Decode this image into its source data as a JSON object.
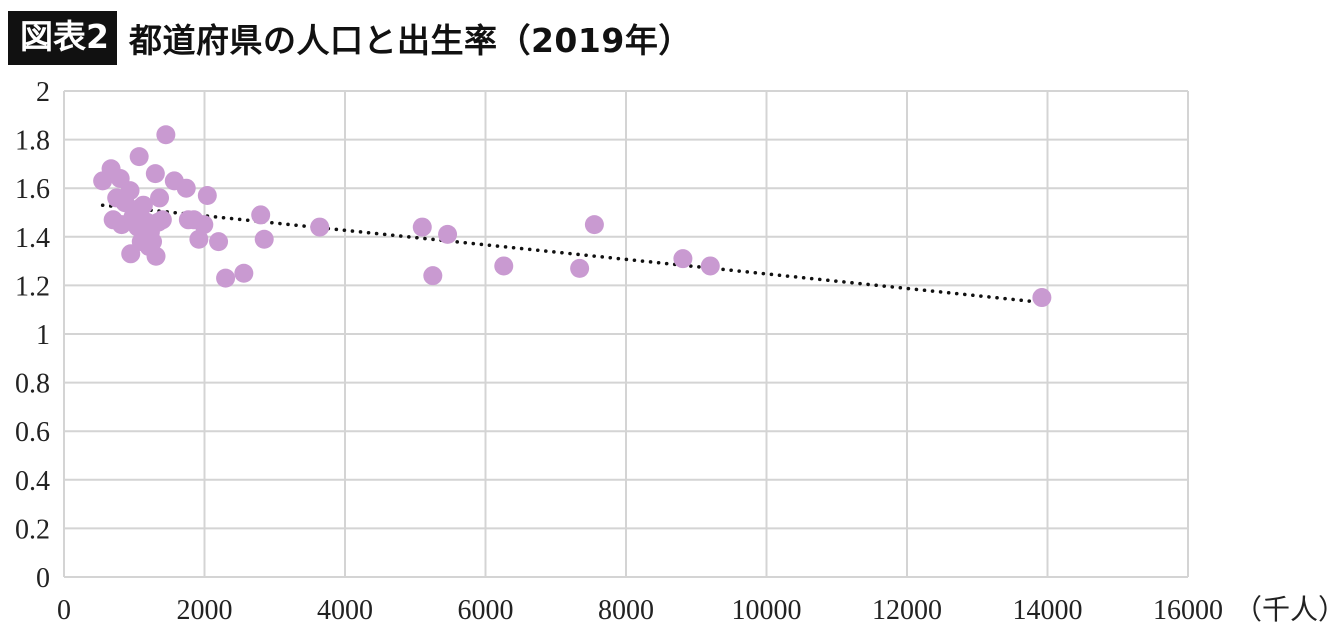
{
  "header": {
    "badge": "図表2",
    "title": "都道府県の人口と出生率（2019年）"
  },
  "colors": {
    "point": "#c99ad1",
    "grid": "#d4d4d4",
    "trend": "#111111",
    "badge_bg": "#111111"
  },
  "chart_data": {
    "type": "scatter",
    "title": "都道府県の人口と出生率（2019年）",
    "xlabel": "（千人）",
    "ylabel": "",
    "xlim": [
      0,
      16000
    ],
    "ylim": [
      0,
      2
    ],
    "x_ticks": [
      0,
      2000,
      4000,
      6000,
      8000,
      10000,
      12000,
      14000,
      16000
    ],
    "y_ticks": [
      0,
      0.2,
      0.4,
      0.6,
      0.8,
      1,
      1.2,
      1.4,
      1.6,
      1.8,
      2
    ],
    "x_tick_labels": [
      "0",
      "2000",
      "4000",
      "6000",
      "8000",
      "10000",
      "12000",
      "14000",
      "16000"
    ],
    "y_tick_labels": [
      "0",
      "0.2",
      "0.4",
      "0.6",
      "0.8",
      "1",
      "1.2",
      "1.4",
      "1.6",
      "1.8",
      "2"
    ],
    "grid": true,
    "legend": "none",
    "trendline": {
      "type": "linear",
      "x": [
        550,
        13920
      ],
      "y": [
        1.53,
        1.13
      ],
      "style": "dotted"
    },
    "points": [
      [
        550,
        1.63
      ],
      [
        670,
        1.68
      ],
      [
        700,
        1.47
      ],
      [
        750,
        1.56
      ],
      [
        800,
        1.64
      ],
      [
        820,
        1.45
      ],
      [
        870,
        1.54
      ],
      [
        940,
        1.59
      ],
      [
        950,
        1.33
      ],
      [
        980,
        1.48
      ],
      [
        1000,
        1.5
      ],
      [
        1050,
        1.44
      ],
      [
        1070,
        1.73
      ],
      [
        1090,
        1.52
      ],
      [
        1100,
        1.38
      ],
      [
        1130,
        1.53
      ],
      [
        1150,
        1.41
      ],
      [
        1180,
        1.46
      ],
      [
        1210,
        1.36
      ],
      [
        1230,
        1.42
      ],
      [
        1260,
        1.38
      ],
      [
        1300,
        1.66
      ],
      [
        1310,
        1.32
      ],
      [
        1340,
        1.46
      ],
      [
        1360,
        1.56
      ],
      [
        1400,
        1.47
      ],
      [
        1450,
        1.82
      ],
      [
        1570,
        1.63
      ],
      [
        1740,
        1.6
      ],
      [
        1770,
        1.47
      ],
      [
        1850,
        1.47
      ],
      [
        1920,
        1.39
      ],
      [
        1990,
        1.45
      ],
      [
        2040,
        1.57
      ],
      [
        2200,
        1.38
      ],
      [
        2300,
        1.23
      ],
      [
        2560,
        1.25
      ],
      [
        2800,
        1.49
      ],
      [
        2850,
        1.39
      ],
      [
        3640,
        1.44
      ],
      [
        5100,
        1.44
      ],
      [
        5250,
        1.24
      ],
      [
        5460,
        1.41
      ],
      [
        6260,
        1.28
      ],
      [
        7340,
        1.27
      ],
      [
        7550,
        1.45
      ],
      [
        8810,
        1.31
      ],
      [
        9200,
        1.28
      ],
      [
        13920,
        1.15
      ]
    ]
  }
}
